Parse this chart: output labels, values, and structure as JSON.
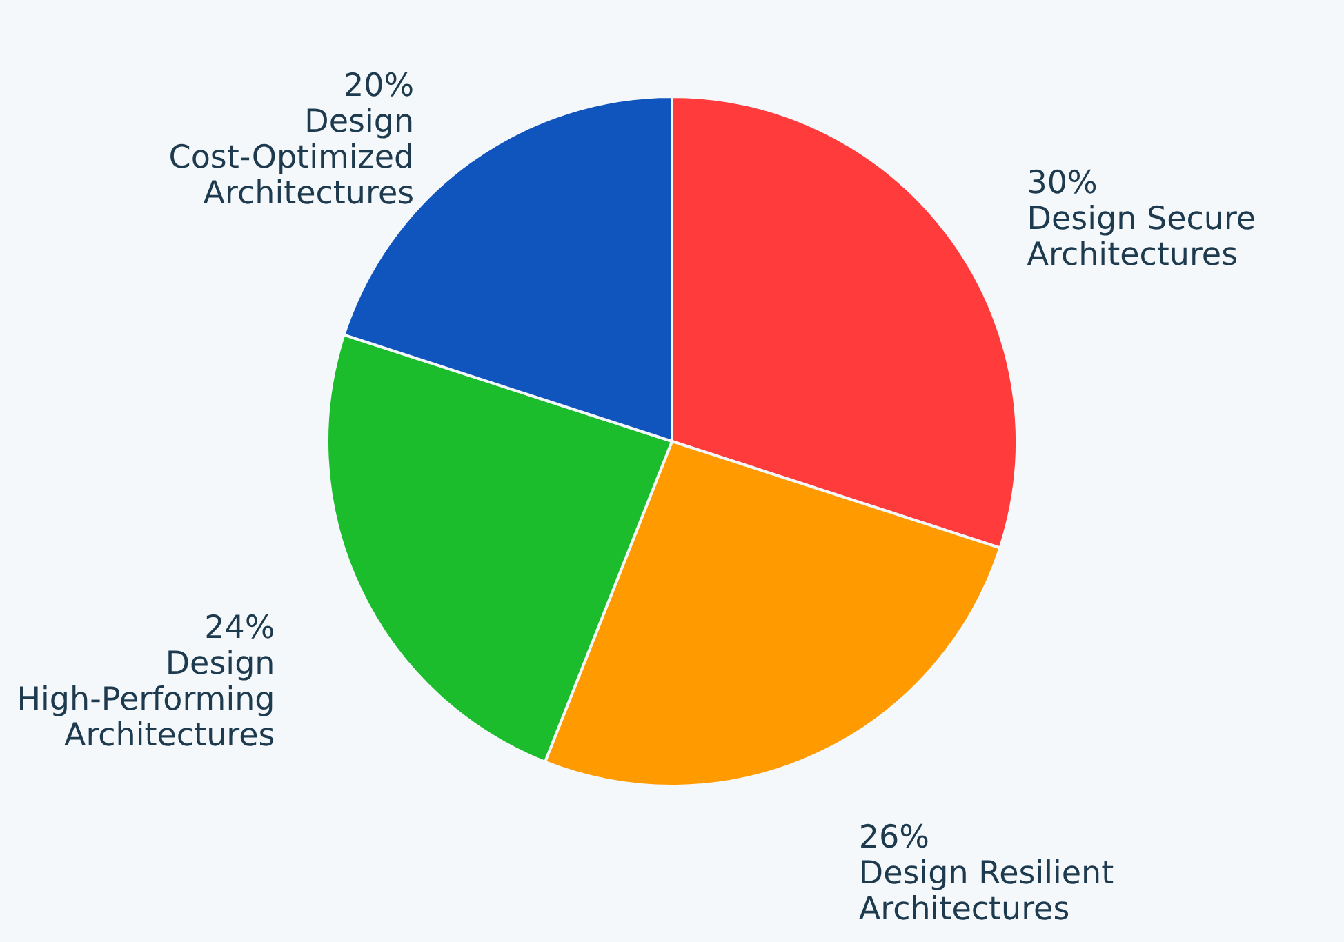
{
  "chart_data": {
    "type": "pie",
    "categories": [
      "Design Secure Architectures",
      "Design Resilient Architectures",
      "Design High-Performing Architectures",
      "Design Cost-Optimized Architectures"
    ],
    "values": [
      30,
      26,
      24,
      20
    ],
    "value_labels": [
      "30%",
      "26%",
      "24%",
      "20%"
    ],
    "colors": [
      "#ff3b3b",
      "#ff9a00",
      "#1bbd2d",
      "#1055bd"
    ]
  }
}
